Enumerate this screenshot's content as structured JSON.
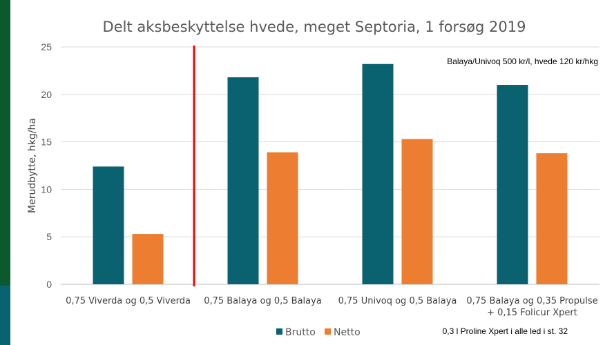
{
  "chart_data": {
    "type": "bar",
    "title": "Delt aksbeskyttelse hvede, meget Septoria, 1 forsøg 2019",
    "ylabel": "Merudbytte, hkg/ha",
    "xlabel": "",
    "ylim": [
      0,
      25
    ],
    "yticks": [
      "0",
      "5",
      "10",
      "15",
      "20",
      "25"
    ],
    "grid": true,
    "legend_position": "bottom",
    "categories": [
      [
        "0,75 Viverda og 0,5 Viverda"
      ],
      [
        "0,75 Balaya og 0,5 Balaya"
      ],
      [
        "0,75 Univoq og 0,5 Balaya"
      ],
      [
        "0,75 Balaya og 0,35 Propulse",
        "+ 0,15 Folicur Xpert"
      ]
    ],
    "series": [
      {
        "name": "Brutto",
        "color": "#0a6170",
        "values": [
          12.4,
          21.8,
          23.2,
          21.0
        ]
      },
      {
        "name": "Netto",
        "color": "#ed7d31",
        "values": [
          5.3,
          13.9,
          15.3,
          13.8
        ]
      }
    ],
    "annotations": {
      "price_note": "Balaya/Univoq 500 kr/l, hvede 120 kr/hkg",
      "footer_note": "0,3 l Proline Xpert i alle led i st. 32"
    },
    "divider_color": "#ff0000"
  }
}
